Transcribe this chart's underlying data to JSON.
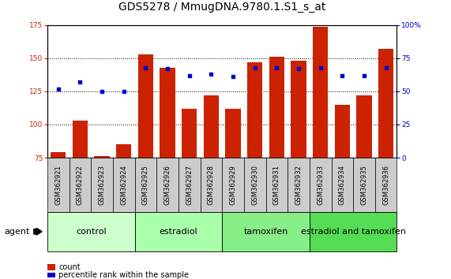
{
  "title": "GDS5278 / MmugDNA.9780.1.S1_s_at",
  "samples": [
    "GSM362921",
    "GSM362922",
    "GSM362923",
    "GSM362924",
    "GSM362925",
    "GSM362926",
    "GSM362927",
    "GSM362928",
    "GSM362929",
    "GSM362930",
    "GSM362931",
    "GSM362932",
    "GSM362933",
    "GSM362934",
    "GSM362935",
    "GSM362936"
  ],
  "counts": [
    79,
    103,
    76,
    85,
    153,
    143,
    112,
    122,
    112,
    147,
    151,
    148,
    174,
    115,
    122,
    157
  ],
  "percentiles": [
    52,
    57,
    50,
    50,
    68,
    67,
    62,
    63,
    61,
    68,
    68,
    67,
    68,
    62,
    62,
    68
  ],
  "groups": [
    "control",
    "control",
    "control",
    "control",
    "estradiol",
    "estradiol",
    "estradiol",
    "estradiol",
    "tamoxifen",
    "tamoxifen",
    "tamoxifen",
    "tamoxifen",
    "estradiol and tamoxifen",
    "estradiol and tamoxifen",
    "estradiol and tamoxifen",
    "estradiol and tamoxifen"
  ],
  "group_colors": {
    "control": "#ccffcc",
    "estradiol": "#aaffaa",
    "tamoxifen": "#88ee88",
    "estradiol and tamoxifen": "#55dd55"
  },
  "bar_color": "#cc2200",
  "dot_color": "#0000cc",
  "ylim_left": [
    75,
    175
  ],
  "ylim_right": [
    0,
    100
  ],
  "yticks_left": [
    75,
    100,
    125,
    150,
    175
  ],
  "yticks_right": [
    0,
    25,
    50,
    75,
    100
  ],
  "background_color": "#ffffff",
  "plot_bg_color": "#ffffff",
  "tick_label_bg": "#cccccc",
  "title_fontsize": 10,
  "tick_fontsize": 6.5,
  "sample_fontsize": 6,
  "group_fontsize": 8,
  "legend_fontsize": 7,
  "groups_unique": [
    "control",
    "estradiol",
    "tamoxifen",
    "estradiol and tamoxifen"
  ]
}
